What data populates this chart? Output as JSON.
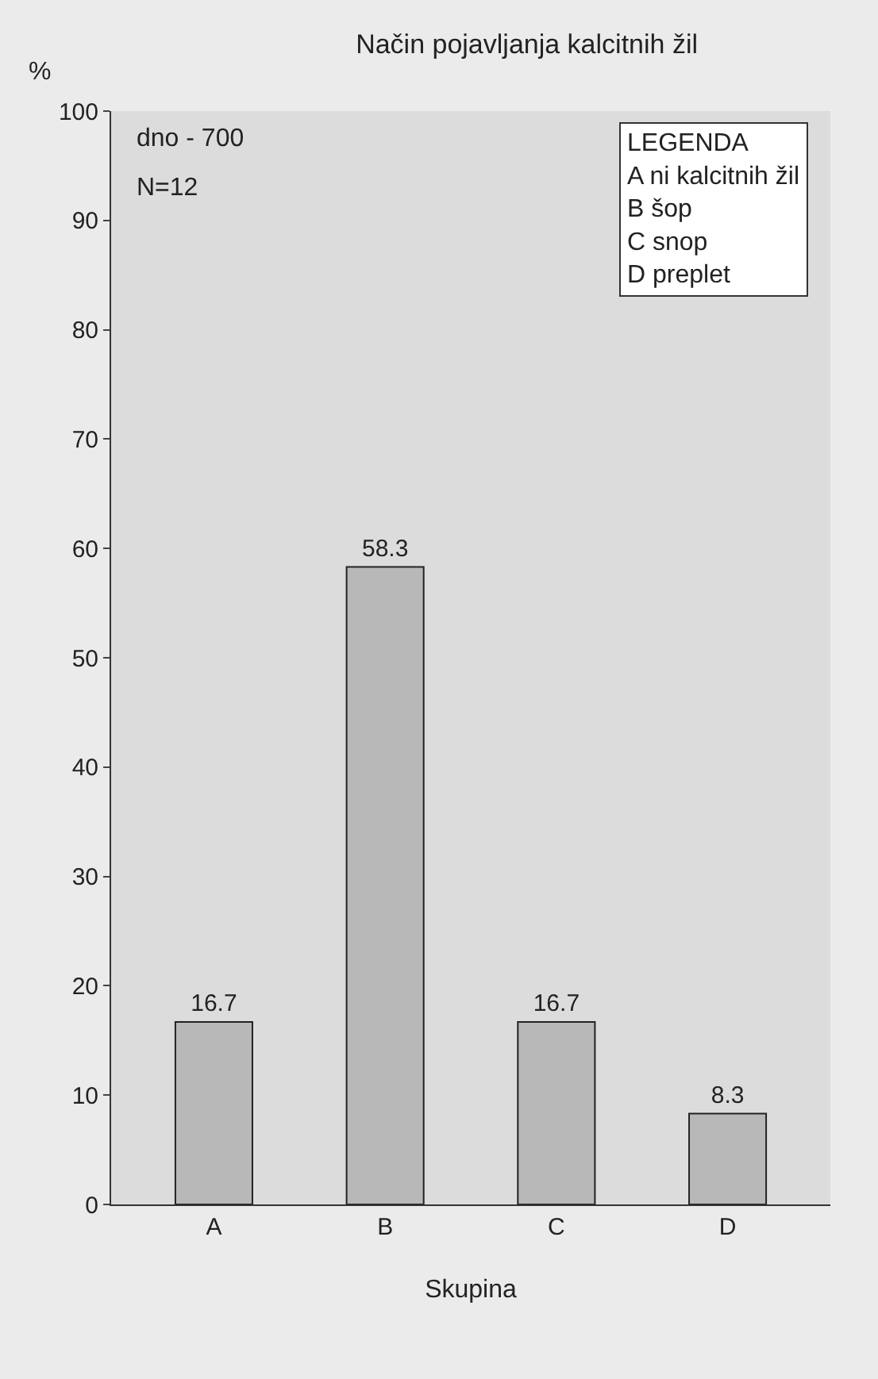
{
  "chart_data": {
    "type": "bar",
    "title": "Način pojavljanja kalcitnih žil",
    "ylabel": "%",
    "xlabel": "Skupina",
    "categories": [
      "A",
      "B",
      "C",
      "D"
    ],
    "values": [
      16.7,
      58.3,
      16.7,
      8.3
    ],
    "color": "#b8b8b8",
    "ylim": [
      0,
      100
    ],
    "yticks": [
      0,
      10,
      20,
      30,
      40,
      50,
      60,
      70,
      80,
      90,
      100
    ],
    "data_labels": true,
    "grid": false,
    "legend": false,
    "annotations": [
      "dno - 700",
      "N=12",
      "LEGENDA",
      "A ni kalcitnih žil",
      "B šop",
      "C snop",
      "D preplet"
    ]
  }
}
